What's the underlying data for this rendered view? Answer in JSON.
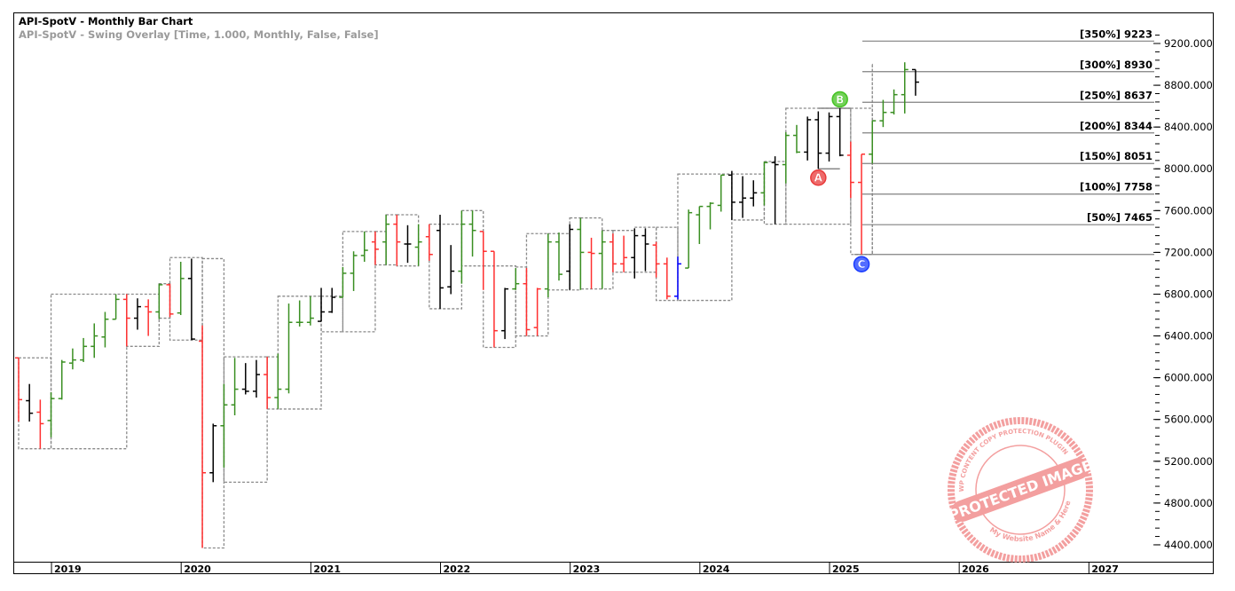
{
  "header": {
    "title": "API-SpotV - Monthly Bar Chart",
    "overlay": "API-SpotV - Swing Overlay [Time, 1.000, Monthly, False, False]"
  },
  "colors": {
    "g": "#3a8f22",
    "r": "#ff3030",
    "k": "#000000",
    "b": "#0000ff",
    "box": "#8a8a8a",
    "level": "#808080"
  },
  "watermark": {
    "main": "PROTECTED IMAGE",
    "ring": "WP CONTENT COPY PROTECTION PLUGIN",
    "footer": "My Website Name & Here",
    "color": "#f08080"
  },
  "chart_data": {
    "type": "ohlc-bar",
    "title": "API-SpotV - Monthly Bar Chart",
    "first_bar": "2018-10",
    "bar_fields": [
      "open",
      "high",
      "low",
      "close",
      "color"
    ],
    "ylim": [
      4300,
      9350
    ],
    "y_ticks": [
      "9200.000",
      "8800.000",
      "8400.000",
      "8000.000",
      "7600.000",
      "7200.000",
      "6800.000",
      "6400.000",
      "6000.000",
      "5600.000",
      "5200.000",
      "4800.000",
      "4400.000"
    ],
    "y_tick_values": [
      9200,
      8800,
      8400,
      8000,
      7600,
      7200,
      6800,
      6400,
      6000,
      5600,
      5200,
      4800,
      4400
    ],
    "x_ticks": [
      {
        "label": "2019",
        "bar": 3
      },
      {
        "label": "2020",
        "bar": 15
      },
      {
        "label": "2021",
        "bar": 27
      },
      {
        "label": "2022",
        "bar": 39
      },
      {
        "label": "2023",
        "bar": 51
      },
      {
        "label": "2024",
        "bar": 63
      },
      {
        "label": "2025",
        "bar": 75
      },
      {
        "label": "2026",
        "bar": 87
      },
      {
        "label": "2027",
        "bar": 99
      }
    ],
    "bars": [
      [
        6190,
        6190,
        5580,
        5790,
        "r"
      ],
      [
        5780,
        5940,
        5580,
        5660,
        "k"
      ],
      [
        5670,
        5790,
        5320,
        5560,
        "r"
      ],
      [
        5590,
        5860,
        5430,
        5800,
        "g"
      ],
      [
        5800,
        6170,
        5790,
        6150,
        "g"
      ],
      [
        6140,
        6280,
        6080,
        6170,
        "g"
      ],
      [
        6170,
        6380,
        6150,
        6300,
        "g"
      ],
      [
        6300,
        6520,
        6190,
        6400,
        "g"
      ],
      [
        6390,
        6630,
        6290,
        6560,
        "g"
      ],
      [
        6560,
        6800,
        6560,
        6750,
        "g"
      ],
      [
        6750,
        6800,
        6300,
        6570,
        "r"
      ],
      [
        6570,
        6760,
        6460,
        6680,
        "k"
      ],
      [
        6680,
        6750,
        6400,
        6630,
        "r"
      ],
      [
        6630,
        6900,
        6560,
        6890,
        "g"
      ],
      [
        6890,
        6900,
        6580,
        6610,
        "r"
      ],
      [
        6620,
        7110,
        6600,
        6950,
        "g"
      ],
      [
        6950,
        7140,
        6360,
        6370,
        "k"
      ],
      [
        6350,
        6500,
        4370,
        5090,
        "r"
      ],
      [
        5090,
        5560,
        5000,
        5540,
        "k"
      ],
      [
        5540,
        5940,
        5140,
        5740,
        "g"
      ],
      [
        5740,
        6190,
        5640,
        5890,
        "g"
      ],
      [
        5890,
        6140,
        5840,
        5870,
        "k"
      ],
      [
        5870,
        6170,
        5810,
        6030,
        "k"
      ],
      [
        6030,
        6200,
        5700,
        5810,
        "r"
      ],
      [
        5810,
        6230,
        5700,
        5890,
        "g"
      ],
      [
        5890,
        6710,
        5850,
        6530,
        "g"
      ],
      [
        6530,
        6740,
        6490,
        6530,
        "g"
      ],
      [
        6530,
        6780,
        6500,
        6570,
        "g"
      ],
      [
        6540,
        6860,
        6540,
        6630,
        "k"
      ],
      [
        6630,
        6860,
        6620,
        6770,
        "k"
      ],
      [
        6770,
        7060,
        6770,
        7000,
        "g"
      ],
      [
        7000,
        7210,
        6830,
        7170,
        "g"
      ],
      [
        7170,
        7400,
        7110,
        7220,
        "g"
      ],
      [
        7300,
        7400,
        7080,
        7230,
        "r"
      ],
      [
        7300,
        7560,
        7080,
        7470,
        "g"
      ],
      [
        7470,
        7560,
        7070,
        7300,
        "r"
      ],
      [
        7280,
        7460,
        7100,
        7280,
        "k"
      ],
      [
        7250,
        7470,
        7070,
        7300,
        "g"
      ],
      [
        7350,
        7470,
        7120,
        7180,
        "r"
      ],
      [
        7410,
        7560,
        6660,
        6860,
        "k"
      ],
      [
        6870,
        7270,
        6800,
        7020,
        "k"
      ],
      [
        7020,
        7600,
        6900,
        7470,
        "g"
      ],
      [
        7470,
        7600,
        7160,
        7410,
        "g"
      ],
      [
        7400,
        7400,
        6840,
        7210,
        "r"
      ],
      [
        7210,
        7210,
        6290,
        6450,
        "r"
      ],
      [
        6450,
        6860,
        6370,
        6850,
        "k"
      ],
      [
        6850,
        7050,
        6840,
        6900,
        "g"
      ],
      [
        6900,
        7050,
        6400,
        6460,
        "r"
      ],
      [
        6480,
        6860,
        6400,
        6850,
        "r"
      ],
      [
        6850,
        7380,
        6770,
        7300,
        "g"
      ],
      [
        7300,
        7390,
        6930,
        6990,
        "g"
      ],
      [
        7020,
        7470,
        6840,
        7420,
        "k"
      ],
      [
        7420,
        7530,
        6840,
        7200,
        "g"
      ],
      [
        7200,
        7340,
        6850,
        7190,
        "r"
      ],
      [
        7190,
        7410,
        6850,
        7300,
        "g"
      ],
      [
        7300,
        7380,
        7010,
        7090,
        "r"
      ],
      [
        7090,
        7360,
        7010,
        7150,
        "r"
      ],
      [
        7150,
        7430,
        6950,
        7360,
        "k"
      ],
      [
        7360,
        7430,
        7020,
        7280,
        "k"
      ],
      [
        7270,
        7300,
        6960,
        7090,
        "r"
      ],
      [
        7090,
        7150,
        6750,
        6780,
        "r"
      ],
      [
        6780,
        7160,
        6750,
        7090,
        "b"
      ],
      [
        7050,
        7610,
        7050,
        7580,
        "g"
      ],
      [
        7560,
        7640,
        7280,
        7640,
        "g"
      ],
      [
        7640,
        7680,
        7420,
        7670,
        "g"
      ],
      [
        7650,
        7940,
        7590,
        7940,
        "g"
      ],
      [
        7940,
        7980,
        7510,
        7680,
        "k"
      ],
      [
        7680,
        7930,
        7530,
        7720,
        "k"
      ],
      [
        7720,
        7890,
        7640,
        7770,
        "k"
      ],
      [
        7770,
        8070,
        7650,
        8060,
        "g"
      ],
      [
        8060,
        8120,
        7470,
        8040,
        "k"
      ],
      [
        8040,
        8350,
        7860,
        8320,
        "g"
      ],
      [
        8320,
        8420,
        8150,
        8160,
        "g"
      ],
      [
        8160,
        8500,
        8080,
        8470,
        "k"
      ],
      [
        8470,
        8550,
        8000,
        8150,
        "k"
      ],
      [
        8150,
        8540,
        8070,
        8500,
        "k"
      ],
      [
        8500,
        8580,
        8120,
        8130,
        "k"
      ],
      [
        8130,
        8260,
        7720,
        7870,
        "r"
      ],
      [
        7870,
        8140,
        7180,
        8140,
        "r"
      ],
      [
        8140,
        8460,
        8050,
        8460,
        "g"
      ],
      [
        8460,
        8660,
        8400,
        8540,
        "g"
      ],
      [
        8540,
        8760,
        8520,
        8710,
        "g"
      ],
      [
        8710,
        9020,
        8530,
        8950,
        "g"
      ],
      [
        8950,
        8950,
        8700,
        8830,
        "k"
      ]
    ],
    "swing_boxes": [
      [
        0,
        3,
        6190,
        5320
      ],
      [
        3,
        10,
        6800,
        5320
      ],
      [
        10,
        13,
        6800,
        6300
      ],
      [
        13,
        14,
        6900,
        6570
      ],
      [
        14,
        17,
        7150,
        6360
      ],
      [
        17,
        19,
        7140,
        4370
      ],
      [
        19,
        23,
        6200,
        5000
      ],
      [
        23,
        24,
        6200,
        5700
      ],
      [
        24,
        28,
        6780,
        5700
      ],
      [
        28,
        30,
        6780,
        6440
      ],
      [
        30,
        33,
        7400,
        6440
      ],
      [
        33,
        34,
        7400,
        7080
      ],
      [
        34,
        35,
        7560,
        7080
      ],
      [
        35,
        37,
        7560,
        7070
      ],
      [
        38,
        41,
        7470,
        6660
      ],
      [
        41,
        43,
        7600,
        7070
      ],
      [
        43,
        46,
        7070,
        6290
      ],
      [
        46,
        47,
        7060,
        6400
      ],
      [
        47,
        49,
        7380,
        6400
      ],
      [
        49,
        51,
        7380,
        6840
      ],
      [
        51,
        52,
        7530,
        6840
      ],
      [
        52,
        54,
        7530,
        6850
      ],
      [
        54,
        55,
        7410,
        6850
      ],
      [
        55,
        57,
        7410,
        7010
      ],
      [
        57,
        59,
        7440,
        7010
      ],
      [
        59,
        61,
        7440,
        6740
      ],
      [
        61,
        66,
        7950,
        6740
      ],
      [
        66,
        69,
        7950,
        7510
      ],
      [
        69,
        71,
        8070,
        7470
      ],
      [
        71,
        77,
        8580,
        7470
      ],
      [
        77,
        79,
        8580,
        7180
      ],
      [
        79,
        79,
        9000,
        7180
      ]
    ],
    "abc_points": [
      {
        "label": "A",
        "bar": 74,
        "value": 8000,
        "color": "#e83a3a"
      },
      {
        "label": "B",
        "bar": 76,
        "value": 8580,
        "color": "#44c222"
      },
      {
        "label": "C",
        "bar": 78,
        "value": 7172,
        "color": "#1a3cff"
      }
    ],
    "projection_levels": [
      {
        "label": "[350%] 9223",
        "value": 9223
      },
      {
        "label": "[300%] 8930",
        "value": 8930
      },
      {
        "label": "[250%] 8637",
        "value": 8637
      },
      {
        "label": "[200%] 8344",
        "value": 8344
      },
      {
        "label": "[150%] 8051",
        "value": 8051
      },
      {
        "label": "[100%] 7758",
        "value": 7758
      },
      {
        "label": "[50%] 7465",
        "value": 7465
      }
    ],
    "base_level": 7180
  }
}
